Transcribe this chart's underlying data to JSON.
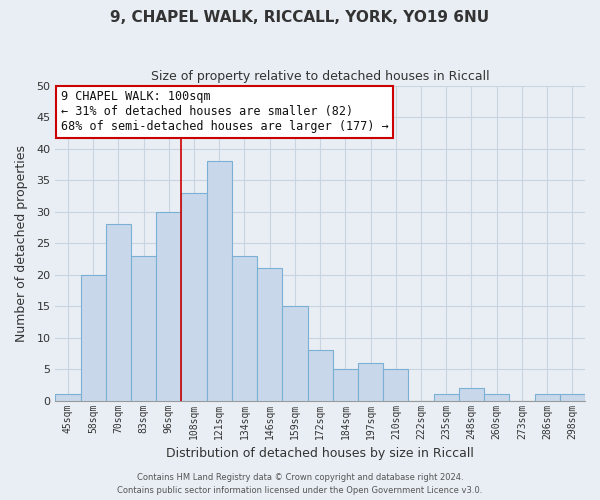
{
  "title_line1": "9, CHAPEL WALK, RICCALL, YORK, YO19 6NU",
  "title_line2": "Size of property relative to detached houses in Riccall",
  "xlabel": "Distribution of detached houses by size in Riccall",
  "ylabel": "Number of detached properties",
  "bar_labels": [
    "45sqm",
    "58sqm",
    "70sqm",
    "83sqm",
    "96sqm",
    "108sqm",
    "121sqm",
    "134sqm",
    "146sqm",
    "159sqm",
    "172sqm",
    "184sqm",
    "197sqm",
    "210sqm",
    "222sqm",
    "235sqm",
    "248sqm",
    "260sqm",
    "273sqm",
    "286sqm",
    "298sqm"
  ],
  "bar_values": [
    1,
    20,
    28,
    23,
    30,
    33,
    38,
    23,
    21,
    15,
    8,
    5,
    6,
    5,
    0,
    1,
    2,
    1,
    0,
    1,
    1
  ],
  "ylim": [
    0,
    50
  ],
  "yticks": [
    0,
    5,
    10,
    15,
    20,
    25,
    30,
    35,
    40,
    45,
    50
  ],
  "bar_color": "#c8d8ea",
  "bar_edge_color": "#7bafd4",
  "grid_color": "#c8d4e0",
  "background_color": "#e8eef4",
  "plot_bg_color": "#e8eef4",
  "annotation_text_line1": "9 CHAPEL WALK: 100sqm",
  "annotation_text_line2": "← 31% of detached houses are smaller (82)",
  "annotation_text_line3": "68% of semi-detached houses are larger (177) →",
  "annotation_box_color": "#ffffff",
  "annotation_box_edge_color": "#cc0000",
  "vline_color": "#cc0000",
  "vline_x_idx": 4.5,
  "footer_line1": "Contains HM Land Registry data © Crown copyright and database right 2024.",
  "footer_line2": "Contains public sector information licensed under the Open Government Licence v3.0."
}
